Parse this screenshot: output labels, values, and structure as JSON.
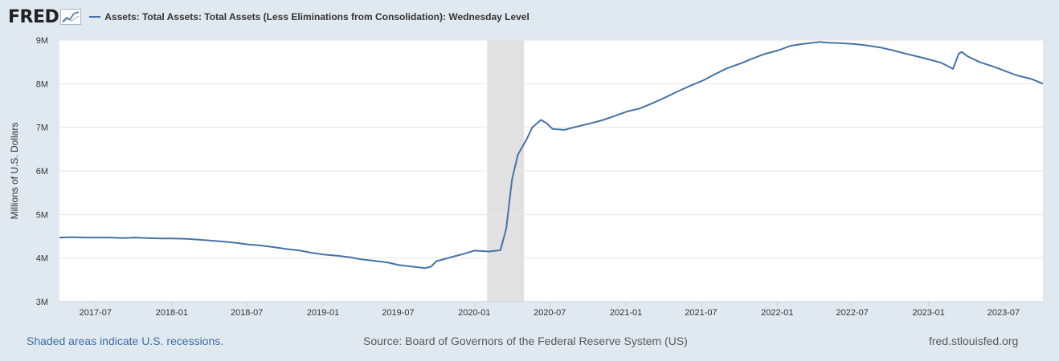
{
  "header": {
    "logo_text": "FRED",
    "legend_label": "Assets: Total Assets: Total Assets (Less Eliminations from Consolidation): Wednesday Level"
  },
  "footer": {
    "recession_note": "Shaded areas indicate U.S. recessions.",
    "source": "Source: Board of Governors of the Federal Reserve System (US)",
    "site": "fred.stlouisfed.org"
  },
  "chart_data": {
    "type": "line",
    "title": "",
    "xlabel": "",
    "ylabel": "Millions of U.S. Dollars",
    "line_color": "#4572a7",
    "recession_color": "#e1e1e1",
    "grid": true,
    "ylim": [
      3,
      9
    ],
    "y_unit": "trillions (M axis labels)",
    "y_ticks": [
      {
        "value": 3,
        "label": "3M"
      },
      {
        "value": 4,
        "label": "4M"
      },
      {
        "value": 5,
        "label": "5M"
      },
      {
        "value": 6,
        "label": "6M"
      },
      {
        "value": 7,
        "label": "7M"
      },
      {
        "value": 8,
        "label": "8M"
      },
      {
        "value": 9,
        "label": "9M"
      }
    ],
    "x_range": [
      "2017-04-05",
      "2023-10-04"
    ],
    "x_ticks": [
      "2017-07",
      "2018-01",
      "2018-07",
      "2019-01",
      "2019-07",
      "2020-01",
      "2020-07",
      "2021-01",
      "2021-07",
      "2022-01",
      "2022-07",
      "2023-01",
      "2023-07"
    ],
    "recessions": [
      {
        "start": "2020-02-01",
        "end": "2020-04-30"
      }
    ],
    "series": [
      {
        "name": "Assets: Total Assets: Total Assets (Less Eliminations from Consolidation): Wednesday Level",
        "points": [
          [
            "2017-04-05",
            4.47
          ],
          [
            "2017-05-03",
            4.48
          ],
          [
            "2017-06-07",
            4.47
          ],
          [
            "2017-07-05",
            4.47
          ],
          [
            "2017-08-02",
            4.47
          ],
          [
            "2017-09-06",
            4.46
          ],
          [
            "2017-10-04",
            4.47
          ],
          [
            "2017-11-01",
            4.46
          ],
          [
            "2017-12-06",
            4.45
          ],
          [
            "2018-01-03",
            4.45
          ],
          [
            "2018-02-07",
            4.44
          ],
          [
            "2018-03-07",
            4.42
          ],
          [
            "2018-04-04",
            4.4
          ],
          [
            "2018-05-02",
            4.38
          ],
          [
            "2018-06-06",
            4.35
          ],
          [
            "2018-07-04",
            4.31
          ],
          [
            "2018-08-01",
            4.29
          ],
          [
            "2018-09-05",
            4.25
          ],
          [
            "2018-10-03",
            4.21
          ],
          [
            "2018-11-07",
            4.17
          ],
          [
            "2018-12-05",
            4.12
          ],
          [
            "2019-01-02",
            4.08
          ],
          [
            "2019-02-06",
            4.05
          ],
          [
            "2019-03-06",
            4.02
          ],
          [
            "2019-04-03",
            3.97
          ],
          [
            "2019-05-01",
            3.94
          ],
          [
            "2019-06-05",
            3.9
          ],
          [
            "2019-07-03",
            3.84
          ],
          [
            "2019-08-07",
            3.8
          ],
          [
            "2019-09-04",
            3.77
          ],
          [
            "2019-09-18",
            3.8
          ],
          [
            "2019-10-02",
            3.93
          ],
          [
            "2019-11-06",
            4.02
          ],
          [
            "2019-12-04",
            4.09
          ],
          [
            "2020-01-01",
            4.17
          ],
          [
            "2020-02-05",
            4.15
          ],
          [
            "2020-03-04",
            4.18
          ],
          [
            "2020-03-18",
            4.67
          ],
          [
            "2020-04-01",
            5.81
          ],
          [
            "2020-04-15",
            6.37
          ],
          [
            "2020-05-06",
            6.72
          ],
          [
            "2020-05-20",
            7.0
          ],
          [
            "2020-06-10",
            7.17
          ],
          [
            "2020-06-24",
            7.09
          ],
          [
            "2020-07-08",
            6.96
          ],
          [
            "2020-08-05",
            6.94
          ],
          [
            "2020-09-02",
            7.01
          ],
          [
            "2020-10-07",
            7.09
          ],
          [
            "2020-11-04",
            7.16
          ],
          [
            "2020-12-02",
            7.25
          ],
          [
            "2021-01-06",
            7.37
          ],
          [
            "2021-02-03",
            7.43
          ],
          [
            "2021-03-03",
            7.54
          ],
          [
            "2021-04-07",
            7.69
          ],
          [
            "2021-05-05",
            7.82
          ],
          [
            "2021-06-02",
            7.94
          ],
          [
            "2021-07-07",
            8.08
          ],
          [
            "2021-08-04",
            8.22
          ],
          [
            "2021-09-01",
            8.35
          ],
          [
            "2021-10-06",
            8.47
          ],
          [
            "2021-11-03",
            8.58
          ],
          [
            "2021-12-01",
            8.68
          ],
          [
            "2022-01-05",
            8.77
          ],
          [
            "2022-02-02",
            8.87
          ],
          [
            "2022-03-02",
            8.91
          ],
          [
            "2022-04-13",
            8.96
          ],
          [
            "2022-05-04",
            8.94
          ],
          [
            "2022-06-01",
            8.93
          ],
          [
            "2022-07-06",
            8.91
          ],
          [
            "2022-08-03",
            8.88
          ],
          [
            "2022-09-07",
            8.83
          ],
          [
            "2022-10-05",
            8.77
          ],
          [
            "2022-11-02",
            8.7
          ],
          [
            "2022-12-07",
            8.62
          ],
          [
            "2023-01-04",
            8.55
          ],
          [
            "2023-02-01",
            8.48
          ],
          [
            "2023-03-01",
            8.34
          ],
          [
            "2023-03-15",
            8.69
          ],
          [
            "2023-03-22",
            8.73
          ],
          [
            "2023-04-05",
            8.63
          ],
          [
            "2023-05-03",
            8.5
          ],
          [
            "2023-06-07",
            8.39
          ],
          [
            "2023-07-05",
            8.29
          ],
          [
            "2023-08-02",
            8.19
          ],
          [
            "2023-09-06",
            8.11
          ],
          [
            "2023-10-04",
            8.0
          ]
        ]
      }
    ]
  }
}
